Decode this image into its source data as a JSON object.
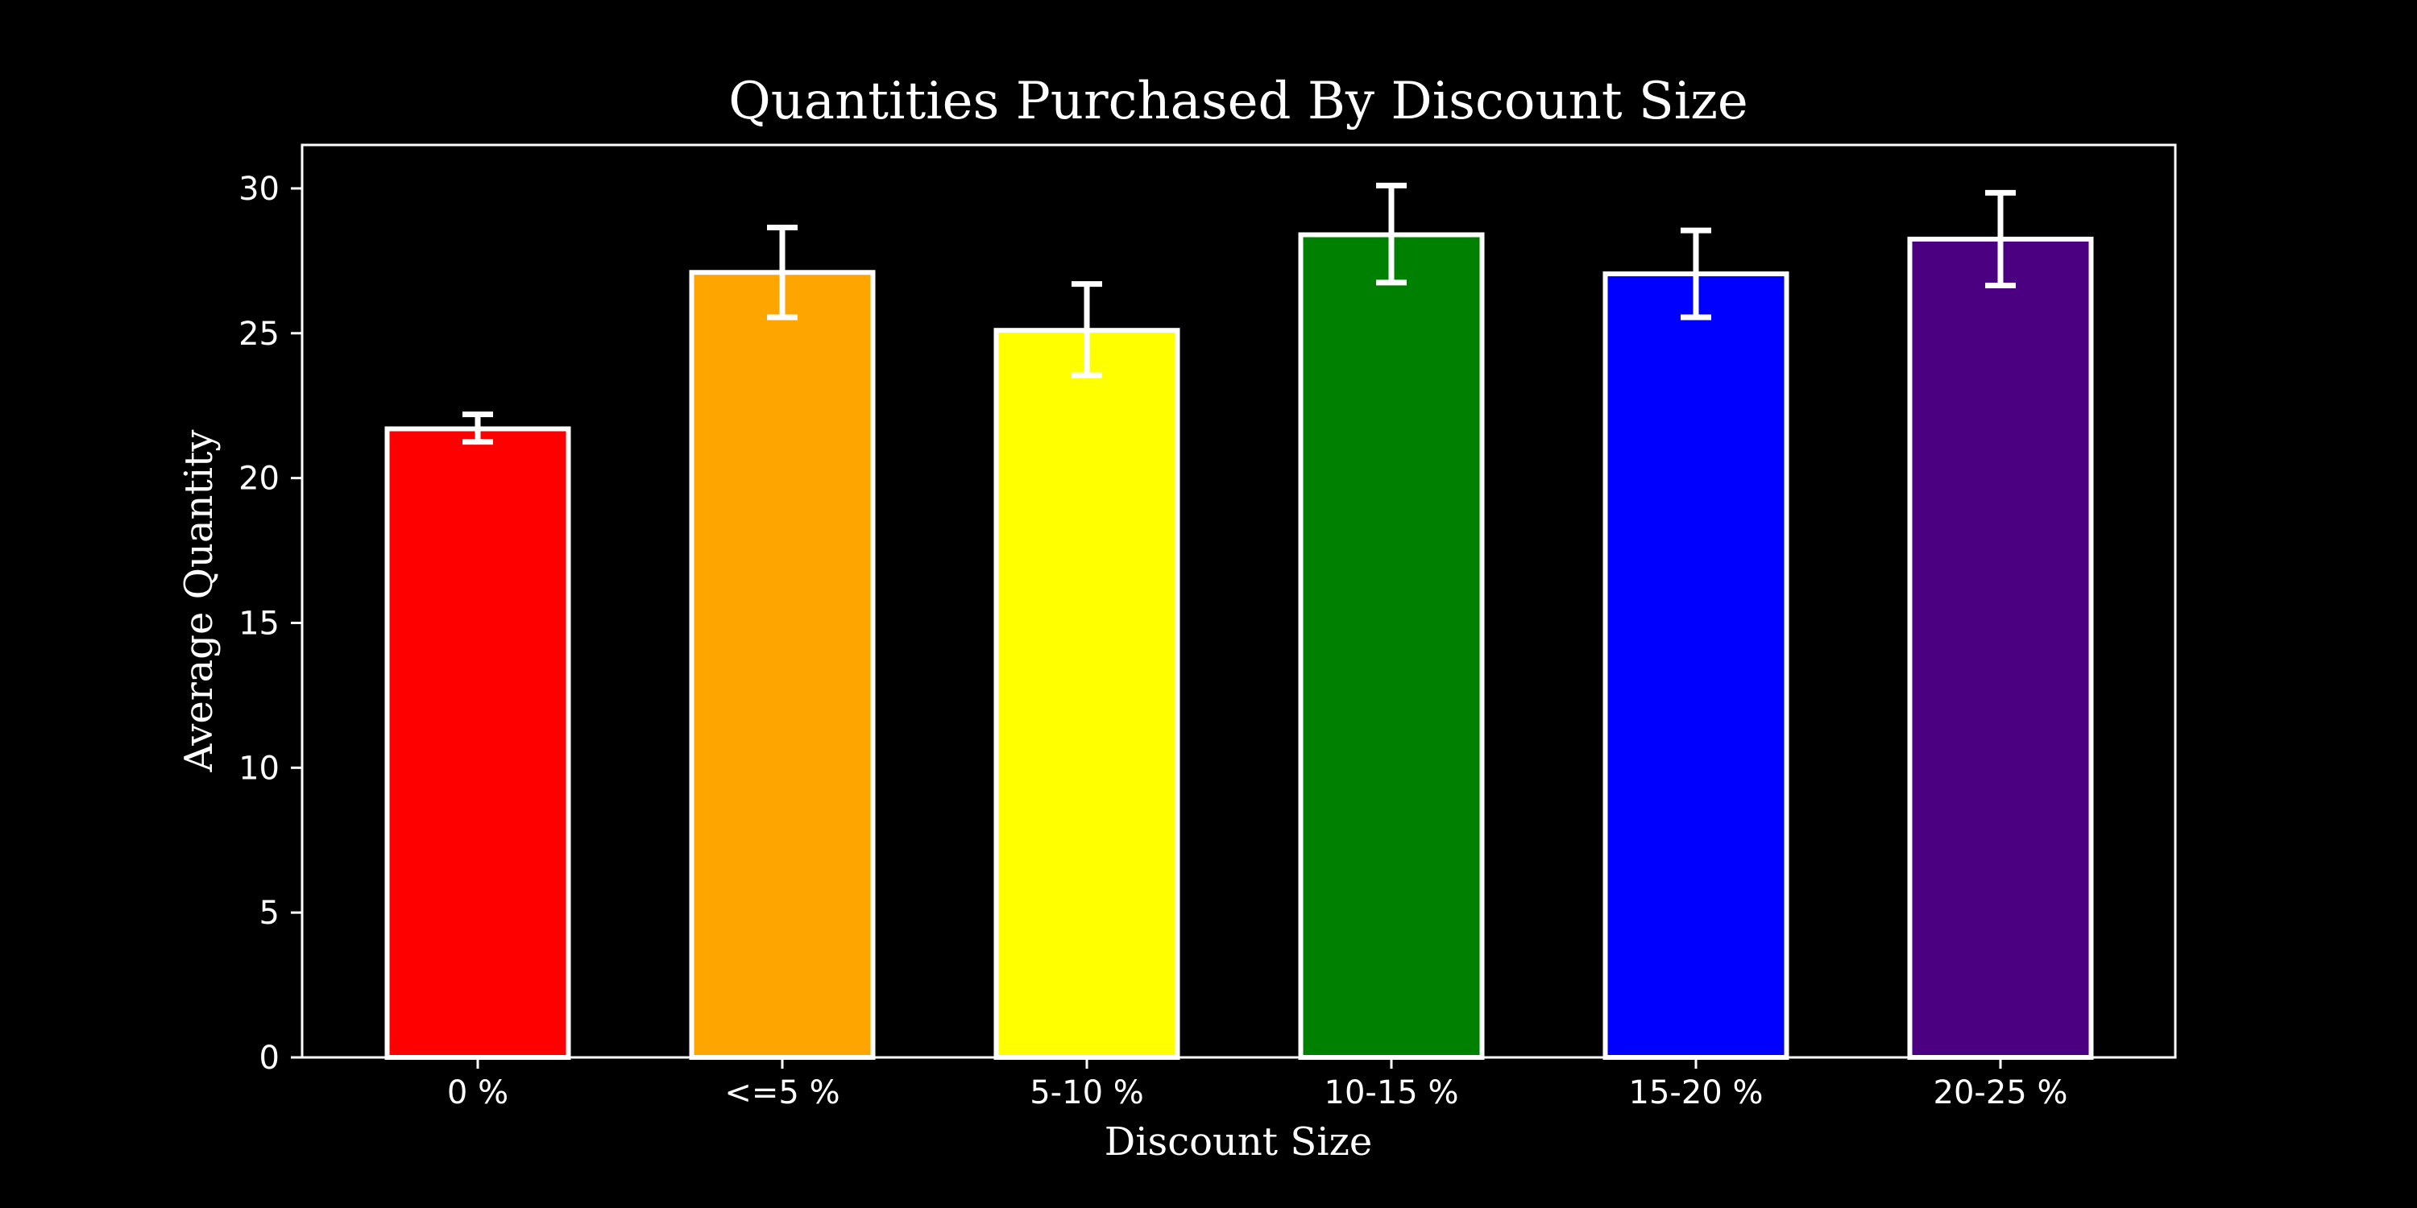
{
  "chart_data": {
    "type": "bar",
    "title": "Quantities Purchased By Discount Size",
    "xlabel": "Discount Size",
    "ylabel": "Average Quantity",
    "categories": [
      "0 %",
      "<=5 %",
      "5-10 %",
      "10-15 %",
      "15-20 %",
      "20-25 %"
    ],
    "values": [
      21.7,
      27.1,
      25.1,
      28.4,
      27.05,
      28.25
    ],
    "error_low": [
      21.25,
      25.55,
      23.55,
      26.75,
      25.55,
      26.65
    ],
    "error_high": [
      22.2,
      28.65,
      26.7,
      30.1,
      28.55,
      29.85
    ],
    "bar_colors": [
      "#ff0000",
      "#ffa500",
      "#ffff00",
      "#008000",
      "#0000ff",
      "#4b0082"
    ],
    "edge_color": "#ffffff",
    "background": "#000000",
    "ylim": [
      0,
      31.5
    ],
    "yticks": [
      0,
      5,
      10,
      15,
      20,
      25,
      30
    ],
    "grid": false,
    "legend": "none"
  }
}
